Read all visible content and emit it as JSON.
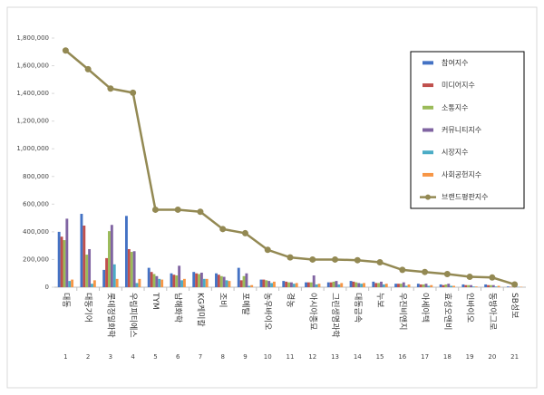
{
  "chart_data": {
    "type": "bar_line",
    "categories": [
      "대동",
      "대동기어",
      "롯데정밀화학",
      "우림피티에스",
      "TYM",
      "남해화학",
      "KG케미칼",
      "조비",
      "포메탈",
      "농우바이오",
      "경농",
      "아시아종묘",
      "그린생명과학",
      "대동금속",
      "누보",
      "우진비앤지",
      "아세아텍",
      "효성오앤비",
      "인바이오",
      "동방아그로",
      "SB성보"
    ],
    "ranks": [
      1,
      2,
      3,
      4,
      5,
      6,
      7,
      8,
      9,
      10,
      11,
      12,
      13,
      14,
      15,
      16,
      17,
      18,
      19,
      20,
      21
    ],
    "series": [
      {
        "name": "참여지수",
        "color": "#4472c4",
        "values": [
          400000,
          530000,
          125000,
          515000,
          140000,
          100000,
          110000,
          100000,
          140000,
          55000,
          45000,
          35000,
          35000,
          45000,
          40000,
          25000,
          25000,
          20000,
          20000,
          20000,
          5000
        ]
      },
      {
        "name": "미디어지수",
        "color": "#c0504d",
        "values": [
          365000,
          445000,
          210000,
          275000,
          110000,
          90000,
          100000,
          90000,
          50000,
          55000,
          40000,
          35000,
          35000,
          40000,
          30000,
          25000,
          20000,
          15000,
          15000,
          15000,
          3000
        ]
      },
      {
        "name": "소통지수",
        "color": "#9bbb59",
        "values": [
          340000,
          235000,
          405000,
          255000,
          95000,
          85000,
          95000,
          80000,
          80000,
          50000,
          35000,
          35000,
          40000,
          35000,
          30000,
          25000,
          20000,
          20000,
          15000,
          15000,
          3000
        ]
      },
      {
        "name": "커뮤니티지수",
        "color": "#8064a2",
        "values": [
          495000,
          275000,
          450000,
          260000,
          80000,
          155000,
          105000,
          75000,
          100000,
          45000,
          35000,
          85000,
          45000,
          30000,
          40000,
          35000,
          25000,
          25000,
          15000,
          15000,
          4000
        ]
      },
      {
        "name": "시장지수",
        "color": "#4bacc6",
        "values": [
          45000,
          25000,
          165000,
          30000,
          60000,
          50000,
          60000,
          50000,
          10000,
          30000,
          25000,
          20000,
          20000,
          25000,
          20000,
          10000,
          10000,
          10000,
          5000,
          5000,
          2000
        ]
      },
      {
        "name": "사회공헌지수",
        "color": "#f79646",
        "values": [
          55000,
          50000,
          60000,
          60000,
          55000,
          60000,
          60000,
          45000,
          15000,
          40000,
          30000,
          25000,
          30000,
          30000,
          25000,
          20000,
          15000,
          10000,
          5000,
          10000,
          3000
        ]
      },
      {
        "name": "브랜드평판지수",
        "color": "#938953",
        "kind": "line",
        "values": [
          1710000,
          1575000,
          1435000,
          1405000,
          560000,
          560000,
          545000,
          420000,
          390000,
          270000,
          215000,
          200000,
          200000,
          195000,
          180000,
          125000,
          110000,
          95000,
          75000,
          70000,
          20000
        ]
      }
    ],
    "ylim": [
      0,
      1800000
    ],
    "yticks": [
      0,
      {
        "value": 200000,
        "label": "200,000"
      },
      {
        "value": 400000,
        "label": "400,000"
      },
      {
        "value": 600000,
        "label": "600,000"
      },
      {
        "value": 800000,
        "label": "800,000"
      },
      {
        "value": 1000000,
        "label": "1,000,000"
      },
      {
        "value": 1200000,
        "label": "1,200,000"
      },
      {
        "value": 1400000,
        "label": "1,400,000"
      },
      {
        "value": 1600000,
        "label": "1,600,000"
      },
      {
        "value": 1800000,
        "label": "1,800,000"
      }
    ],
    "grid": false,
    "legend": "right"
  }
}
